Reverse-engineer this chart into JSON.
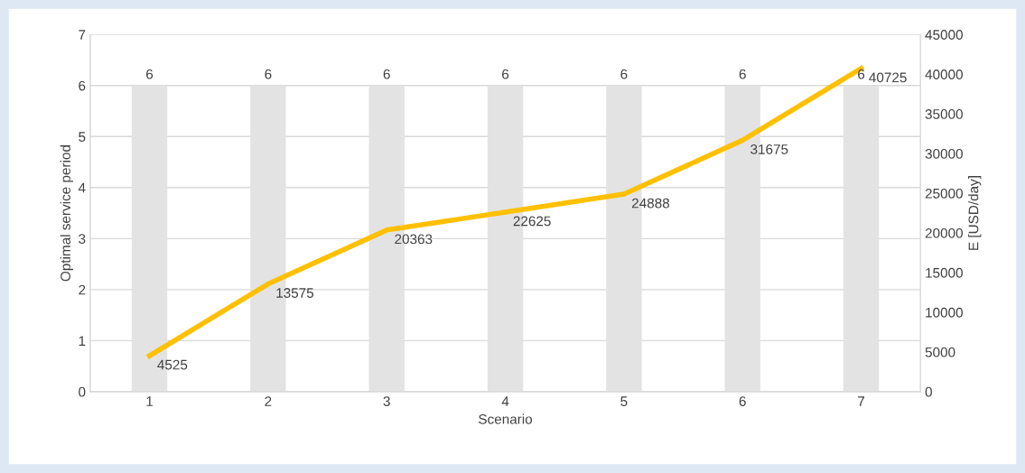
{
  "chart_data": {
    "type": "bar",
    "xlabel": "Scenario",
    "ylabel": "Optimal service period",
    "y2label": "E [USD/day]",
    "categories": [
      "1",
      "2",
      "3",
      "4",
      "5",
      "6",
      "7"
    ],
    "series": [
      {
        "color": "#e3e3e3",
        "values": [
          6,
          6,
          6,
          6,
          6,
          6,
          6
        ]
      },
      {
        "type": "line",
        "axis": "y2",
        "color": "#ffc000",
        "values": [
          4525,
          13575,
          20363,
          22625,
          24888,
          31675,
          40725
        ]
      }
    ],
    "ylim": [
      0,
      7
    ],
    "yticks": [
      0,
      1,
      2,
      3,
      4,
      5,
      6,
      7
    ],
    "y2lim": [
      0,
      45000
    ],
    "y2ticks": [
      0,
      5000,
      10000,
      15000,
      20000,
      25000,
      30000,
      35000,
      40000,
      45000
    ],
    "grid": "y",
    "data_labels": true,
    "marker": "none",
    "line_style": "solid",
    "legend": false
  }
}
